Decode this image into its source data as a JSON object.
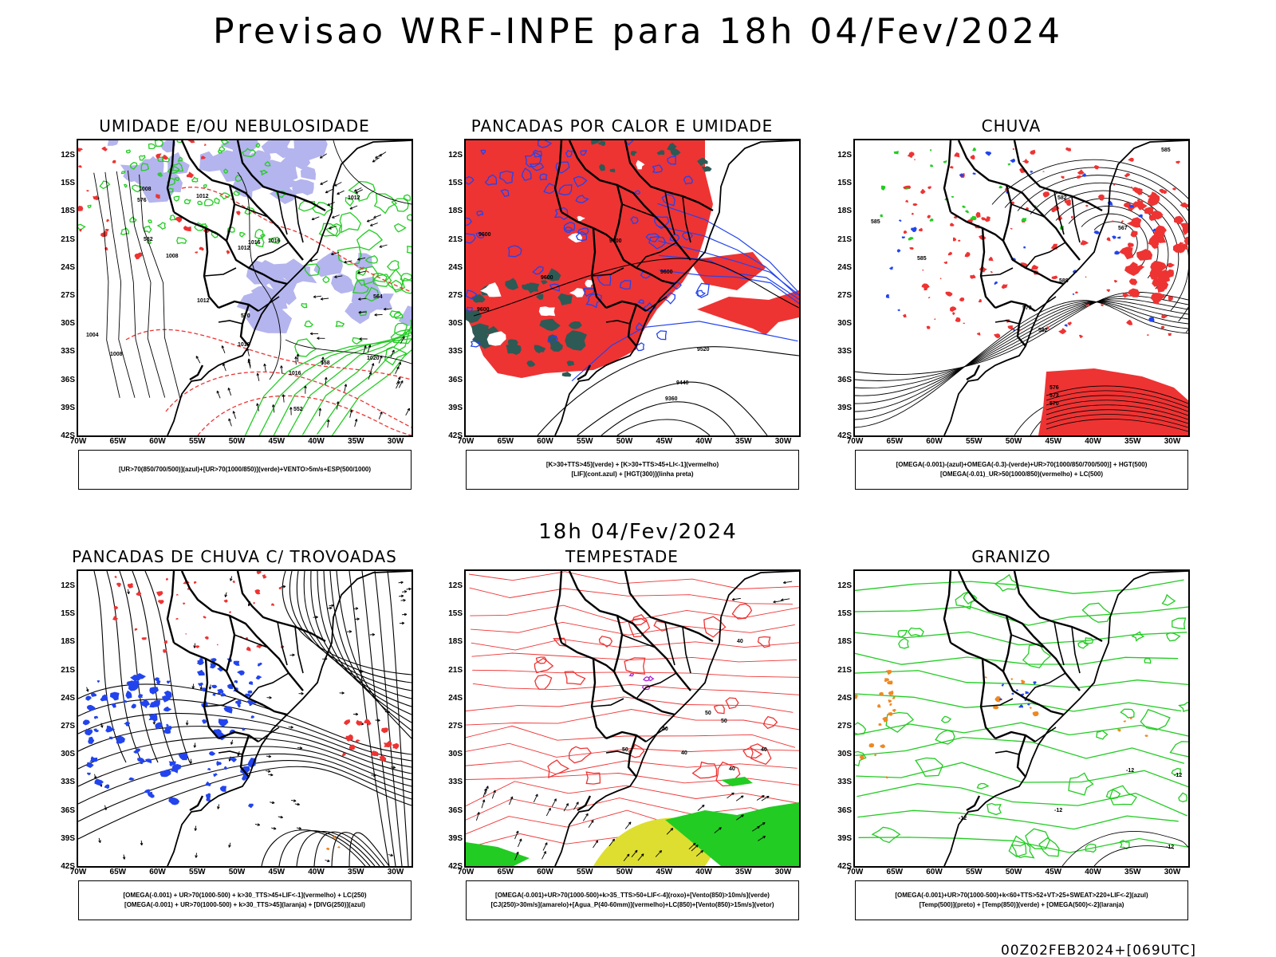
{
  "title": "Previsao WRF-INPE  para 18h 04/Fev/2024",
  "subtitle": "18h 04/Fev/2024",
  "footer": "00Z02FEB2024+[069UTC]",
  "axes": {
    "lat_labels": [
      "12S",
      "15S",
      "18S",
      "21S",
      "24S",
      "27S",
      "30S",
      "33S",
      "36S",
      "39S",
      "42S"
    ],
    "lon_labels": [
      "70W",
      "65W",
      "60W",
      "55W",
      "50W",
      "45W",
      "40W",
      "35W",
      "30W"
    ]
  },
  "colors": {
    "green": "#22cc22",
    "blue": "#2244ee",
    "red": "#ee3333",
    "lavender": "#b4b4ee",
    "dark_teal": "#2d5a55",
    "yellow": "#dede30",
    "orange": "#ee8822",
    "purple": "#aa22cc"
  },
  "panels": [
    {
      "id": "umidade",
      "title": "UMIDADE E/OU NEBULOSIDADE",
      "legend": [
        "[UR>70(850/700/500)](azul)+[UR>70(1000/850)](verde)+VENTO>5m/s+ESP(500/1000)"
      ],
      "contour_labels": [
        "1008",
        "1012",
        "1016",
        "1016",
        "1012",
        "1008",
        "1012",
        "1016",
        "1020",
        "1016",
        "1012",
        "1004",
        "1008",
        "576",
        "570",
        "564",
        "558",
        "552",
        "582"
      ]
    },
    {
      "id": "pancadas_calor",
      "title": "PANCADAS POR CALOR E UMIDADE",
      "legend": [
        "[K>30+TTS>45](verde) + [K>30+TTS>45+LI<-1](vermelho)",
        "[LIF](cont.azul) + [HGT(300)](linha preta)"
      ],
      "contour_labels": [
        "9600",
        "9600",
        "9600",
        "9600",
        "9600",
        "9520",
        "9440",
        "9360"
      ]
    },
    {
      "id": "chuva",
      "title": "CHUVA",
      "legend": [
        "[OMEGA(-0.001)-(azul)+OMEGA(-0.3)-(verde)+UR>70(1000/850/700/500)] + HGT(500)",
        "[OMEGA(-0.01)_UR>50(1000/850)(vermelho) + LC(500)"
      ],
      "contour_labels": [
        "585",
        "582",
        "585",
        "588",
        "582",
        "579",
        "576",
        "573",
        "570",
        "567",
        "585"
      ]
    },
    {
      "id": "pancadas_trovoadas",
      "title": "PANCADAS DE CHUVA C/ TROVOADAS",
      "legend": [
        "[OMEGA(-0.001) + UR>70(1000-500) + k>30_TTS>45+LIF<-1](vermelho) + LC(250)",
        "[OMEGA(-0.001) + UR>70(1000-500) + k>30_TTS>45](laranja) + [DIVG(250)](azul)"
      ],
      "contour_labels": []
    },
    {
      "id": "tempestade",
      "title": "TEMPESTADE",
      "legend": [
        "[OMEGA(-0.001)+UR>70(1000-500)+k>35_TTS>50+LIF<-4](roxo)+[Vento(850)>10m/s](verde)",
        "[CJ(250)>30m/s](amarelo)+[Agua_P(40-60mm)](vermelho)+LC(850)+[Vento(850)>15m/s](vetor)"
      ],
      "contour_labels": [
        "40",
        "50",
        "40",
        "40",
        "50",
        "50",
        "40",
        "40"
      ]
    },
    {
      "id": "granizo",
      "title": "GRANIZO",
      "legend": [
        "[OMEGA(-0.001)+UR>70(1000-500)+k<60+TTS>52+VT>25+SWEAT>220+LIF<-2](azul)",
        "[Temp(500)](preto) + [Temp(850)](verde) + [OMEGA(500)<-2](laranja)"
      ],
      "contour_labels": [
        "-12",
        "-12",
        "-12",
        "-12",
        "-12"
      ]
    }
  ]
}
